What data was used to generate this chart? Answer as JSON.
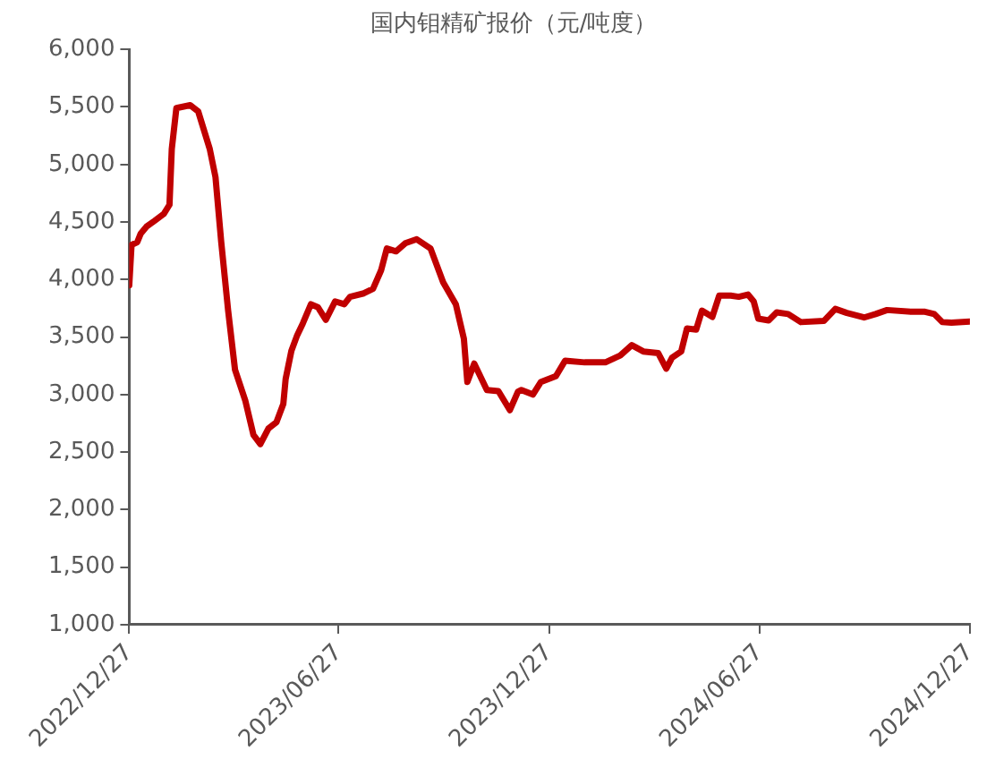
{
  "chart_data": {
    "type": "line",
    "title": "国内钼精矿报价（元/吨度）",
    "x": [
      "2022-12-27",
      "2022-12-29",
      "2023-01-03",
      "2023-01-06",
      "2023-01-11",
      "2023-01-18",
      "2023-01-26",
      "2023-01-31",
      "2023-02-02",
      "2023-02-06",
      "2023-02-18",
      "2023-02-25",
      "2023-03-07",
      "2023-03-12",
      "2023-03-17",
      "2023-03-23",
      "2023-03-29",
      "2023-04-07",
      "2023-04-14",
      "2023-04-20",
      "2023-04-27",
      "2023-05-04",
      "2023-05-10",
      "2023-05-12",
      "2023-05-17",
      "2023-05-22",
      "2023-05-27",
      "2023-06-03",
      "2023-06-09",
      "2023-06-16",
      "2023-06-24",
      "2023-07-02",
      "2023-07-07",
      "2023-07-19",
      "2023-07-27",
      "2023-08-03",
      "2023-08-08",
      "2023-08-16",
      "2023-08-24",
      "2023-09-03",
      "2023-09-15",
      "2023-09-26",
      "2023-10-07",
      "2023-10-14",
      "2023-10-17",
      "2023-10-23",
      "2023-11-03",
      "2023-11-13",
      "2023-11-23",
      "2023-11-30",
      "2023-12-03",
      "2023-12-13",
      "2023-12-20",
      "2024-01-02",
      "2024-01-10",
      "2024-01-27",
      "2024-02-14",
      "2024-02-27",
      "2024-03-08",
      "2024-03-18",
      "2024-03-31",
      "2024-04-07",
      "2024-04-12",
      "2024-04-20",
      "2024-04-25",
      "2024-05-03",
      "2024-05-08",
      "2024-05-17",
      "2024-05-23",
      "2024-06-02",
      "2024-06-09",
      "2024-06-17",
      "2024-06-22",
      "2024-06-26",
      "2024-07-05",
      "2024-07-12",
      "2024-07-22",
      "2024-08-02",
      "2024-08-22",
      "2024-09-01",
      "2024-09-11",
      "2024-09-26",
      "2024-10-06",
      "2024-10-16",
      "2024-11-06",
      "2024-11-18",
      "2024-11-26",
      "2024-12-03",
      "2024-12-11",
      "2024-12-27"
    ],
    "series": [
      {
        "color": "#c00000",
        "values": [
          3950,
          4300,
          4325,
          4400,
          4460,
          4510,
          4570,
          4650,
          5135,
          5490,
          5515,
          5460,
          5135,
          4890,
          4325,
          3730,
          3215,
          2945,
          2650,
          2570,
          2705,
          2760,
          2920,
          3135,
          3380,
          3515,
          3620,
          3785,
          3760,
          3650,
          3810,
          3785,
          3850,
          3880,
          3920,
          4080,
          4270,
          4245,
          4315,
          4350,
          4270,
          3975,
          3785,
          3485,
          3110,
          3270,
          3040,
          3030,
          2865,
          3025,
          3040,
          3000,
          3110,
          3160,
          3295,
          3280,
          3280,
          3340,
          3430,
          3375,
          3360,
          3225,
          3320,
          3375,
          3575,
          3565,
          3730,
          3675,
          3860,
          3860,
          3850,
          3870,
          3810,
          3660,
          3645,
          3715,
          3700,
          3630,
          3640,
          3745,
          3710,
          3670,
          3700,
          3735,
          3720,
          3720,
          3700,
          3630,
          3625,
          3635
        ]
      }
    ],
    "xlim": [
      "2022-12-27",
      "2024-12-27"
    ],
    "xticks": [
      {
        "value": "2022-12-27",
        "label": "2022/12/27"
      },
      {
        "value": "2023-06-27",
        "label": "2023/06/27"
      },
      {
        "value": "2023-12-27",
        "label": "2023/12/27"
      },
      {
        "value": "2024-06-27",
        "label": "2024/06/27"
      },
      {
        "value": "2024-12-27",
        "label": "2024/12/27"
      }
    ],
    "ylim": [
      1000,
      6000
    ],
    "yticks": [
      {
        "value": 1000,
        "label": "1,000"
      },
      {
        "value": 1500,
        "label": "1,500"
      },
      {
        "value": 2000,
        "label": "2,000"
      },
      {
        "value": 2500,
        "label": "2,500"
      },
      {
        "value": 3000,
        "label": "3,000"
      },
      {
        "value": 3500,
        "label": "3,500"
      },
      {
        "value": 4000,
        "label": "4,000"
      },
      {
        "value": 4500,
        "label": "4,500"
      },
      {
        "value": 5000,
        "label": "5,000"
      },
      {
        "value": 5500,
        "label": "5,500"
      },
      {
        "value": 6000,
        "label": "6,000"
      }
    ],
    "grid": false,
    "legend": false,
    "marker": "none",
    "line_style": "solid"
  }
}
